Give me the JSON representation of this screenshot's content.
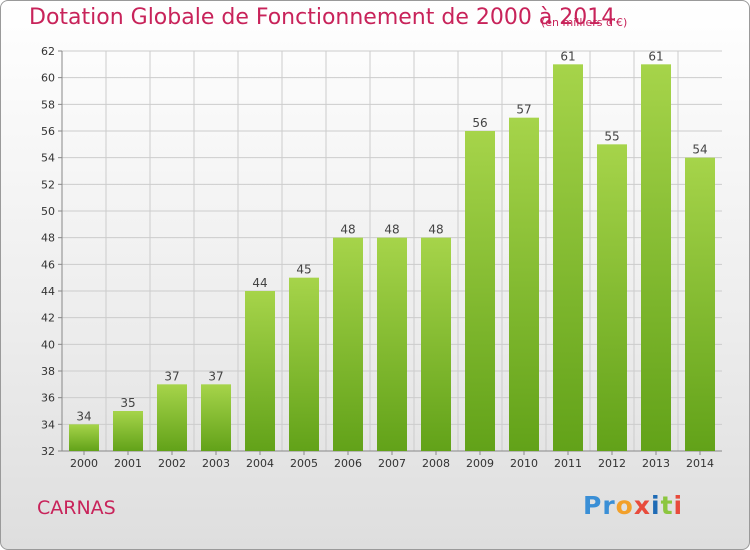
{
  "header": {
    "title": "Dotation Globale de Fonctionnement de 2000 à 2014",
    "unit_note": "(en milliers d'€)"
  },
  "footer": {
    "commune": "CARNAS",
    "logo_text": "Proxiti"
  },
  "colors": {
    "title": "#c8235a",
    "bar_top": "#a6d44a",
    "bar_bottom": "#62a219",
    "grid": "#cccccc"
  },
  "chart_data": {
    "type": "bar",
    "title": "Dotation Globale de Fonctionnement de 2000 à 2014",
    "subtitle": "(en milliers d'€)",
    "xlabel": "",
    "ylabel": "",
    "categories": [
      "2000",
      "2001",
      "2002",
      "2003",
      "2004",
      "2005",
      "2006",
      "2007",
      "2008",
      "2009",
      "2010",
      "2011",
      "2012",
      "2013",
      "2014"
    ],
    "values": [
      34,
      35,
      37,
      37,
      44,
      45,
      48,
      48,
      48,
      56,
      57,
      61,
      55,
      61,
      54
    ],
    "ylim": [
      32,
      62
    ],
    "yticks": [
      32,
      34,
      36,
      38,
      40,
      42,
      44,
      46,
      48,
      50,
      52,
      54,
      56,
      58,
      60,
      62
    ],
    "grid": true,
    "legend": "none"
  }
}
